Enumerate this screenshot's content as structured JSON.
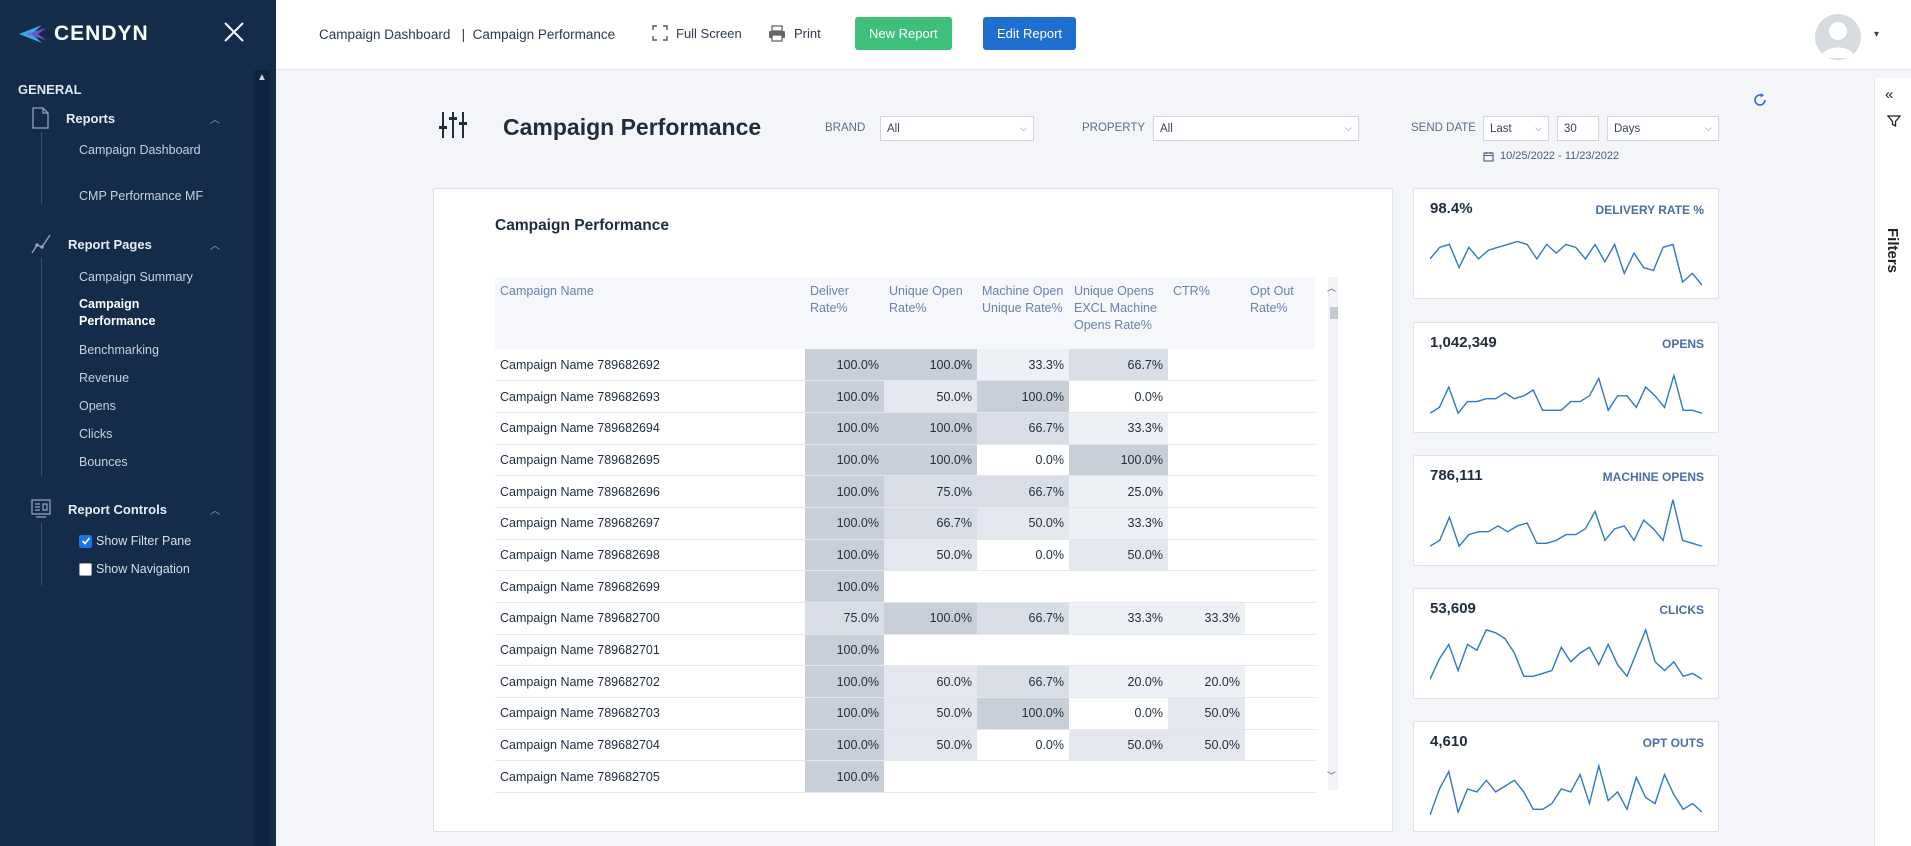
{
  "brand": {
    "name": "CENDYN"
  },
  "sidebar": {
    "section_title": "GENERAL",
    "groups": [
      {
        "label": "Reports",
        "items": [
          "Campaign Dashboard",
          "CMP Performance MF"
        ]
      },
      {
        "label": "Report Pages",
        "items": [
          "Campaign Summary",
          "Campaign Performance",
          "Benchmarking",
          "Revenue",
          "Opens",
          "Clicks",
          "Bounces"
        ]
      },
      {
        "label": "Report Controls",
        "controls": [
          {
            "label": "Show Filter Pane",
            "checked": true
          },
          {
            "label": "Show Navigation",
            "checked": false
          }
        ]
      }
    ]
  },
  "topbar": {
    "breadcrumb": "Campaign Dashboard   |  Campaign Performance",
    "fullscreen_label": "Full Screen",
    "print_label": "Print",
    "new_report_label": "New Report",
    "edit_report_label": "Edit Report"
  },
  "filters_pane": {
    "label": "Filters"
  },
  "header": {
    "title": "Campaign Performance",
    "brand_label": "BRAND",
    "brand_value": "All",
    "property_label": "PROPERTY",
    "property_value": "All",
    "send_date_label": "SEND DATE",
    "period_mode": "Last",
    "period_count": "30",
    "period_unit": "Days",
    "date_range": "10/25/2022 - 11/23/2022"
  },
  "table": {
    "title": "Campaign Performance",
    "columns": [
      "Campaign Name",
      "Deliver Rate%",
      "Unique Open Rate%",
      "Machine Open Unique Rate%",
      "Unique Opens EXCL Machine Opens Rate%",
      "CTR%",
      "Opt Out Rate%"
    ],
    "rows": [
      [
        "Campaign Name 789682692",
        "100.0%",
        "100.0%",
        "33.3%",
        "66.7%",
        "",
        ""
      ],
      [
        "Campaign Name 789682693",
        "100.0%",
        "50.0%",
        "100.0%",
        "0.0%",
        "",
        ""
      ],
      [
        "Campaign Name 789682694",
        "100.0%",
        "100.0%",
        "66.7%",
        "33.3%",
        "",
        ""
      ],
      [
        "Campaign Name 789682695",
        "100.0%",
        "100.0%",
        "0.0%",
        "100.0%",
        "",
        ""
      ],
      [
        "Campaign Name 789682696",
        "100.0%",
        "75.0%",
        "66.7%",
        "25.0%",
        "",
        ""
      ],
      [
        "Campaign Name 789682697",
        "100.0%",
        "66.7%",
        "50.0%",
        "33.3%",
        "",
        ""
      ],
      [
        "Campaign Name 789682698",
        "100.0%",
        "50.0%",
        "0.0%",
        "50.0%",
        "",
        ""
      ],
      [
        "Campaign Name 789682699",
        "100.0%",
        "",
        "",
        "",
        "",
        ""
      ],
      [
        "Campaign Name 789682700",
        "75.0%",
        "100.0%",
        "66.7%",
        "33.3%",
        "33.3%",
        ""
      ],
      [
        "Campaign Name 789682701",
        "100.0%",
        "",
        "",
        "",
        "",
        ""
      ],
      [
        "Campaign Name 789682702",
        "100.0%",
        "60.0%",
        "66.7%",
        "20.0%",
        "20.0%",
        ""
      ],
      [
        "Campaign Name 789682703",
        "100.0%",
        "50.0%",
        "100.0%",
        "0.0%",
        "50.0%",
        ""
      ],
      [
        "Campaign Name 789682704",
        "100.0%",
        "50.0%",
        "0.0%",
        "50.0%",
        "50.0%",
        ""
      ],
      [
        "Campaign Name 789682705",
        "100.0%",
        "",
        "",
        "",
        "",
        ""
      ]
    ]
  },
  "kpis": [
    {
      "value": "98.4%",
      "label": "DELIVERY RATE %",
      "trend": [
        0.55,
        0.35,
        0.3,
        0.7,
        0.35,
        0.55,
        0.4,
        0.35,
        0.3,
        0.25,
        0.3,
        0.55,
        0.3,
        0.45,
        0.3,
        0.35,
        0.55,
        0.3,
        0.6,
        0.3,
        0.8,
        0.45,
        0.7,
        0.75,
        0.35,
        0.3,
        0.95,
        0.8,
        1.0
      ]
    },
    {
      "value": "1,042,349",
      "label": "OPENS",
      "trend": [
        0.9,
        0.8,
        0.45,
        0.9,
        0.7,
        0.7,
        0.65,
        0.65,
        0.55,
        0.65,
        0.6,
        0.5,
        0.85,
        0.85,
        0.85,
        0.7,
        0.7,
        0.6,
        0.3,
        0.85,
        0.6,
        0.6,
        0.8,
        0.45,
        0.6,
        0.8,
        0.25,
        0.85,
        0.85,
        0.9
      ]
    },
    {
      "value": "786,111",
      "label": "MACHINE OPENS",
      "trend": [
        0.9,
        0.8,
        0.4,
        0.9,
        0.7,
        0.65,
        0.65,
        0.55,
        0.65,
        0.55,
        0.5,
        0.85,
        0.85,
        0.8,
        0.7,
        0.7,
        0.6,
        0.3,
        0.8,
        0.6,
        0.55,
        0.8,
        0.45,
        0.6,
        0.8,
        0.1,
        0.8,
        0.85,
        0.9
      ]
    },
    {
      "value": "53,609",
      "label": "CLICKS",
      "trend": [
        0.9,
        0.55,
        0.3,
        0.75,
        0.3,
        0.4,
        0.05,
        0.1,
        0.2,
        0.45,
        0.85,
        0.85,
        0.8,
        0.75,
        0.35,
        0.6,
        0.45,
        0.35,
        0.65,
        0.3,
        0.65,
        0.85,
        0.45,
        0.05,
        0.6,
        0.75,
        0.6,
        0.85,
        0.8,
        0.9
      ]
    },
    {
      "value": "4,610",
      "label": "OPT OUTS",
      "trend": [
        0.95,
        0.5,
        0.2,
        0.9,
        0.5,
        0.55,
        0.35,
        0.55,
        0.45,
        0.35,
        0.55,
        0.85,
        0.85,
        0.75,
        0.5,
        0.55,
        0.25,
        0.75,
        0.1,
        0.7,
        0.55,
        0.85,
        0.3,
        0.65,
        0.75,
        0.25,
        0.6,
        0.85,
        0.75,
        0.9
      ]
    }
  ]
}
